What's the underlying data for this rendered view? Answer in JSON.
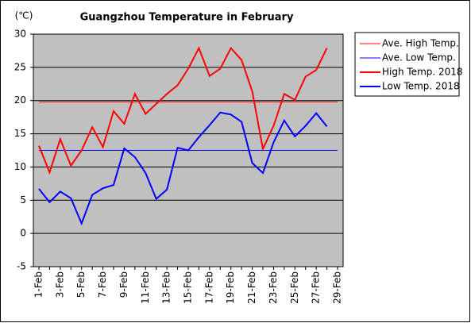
{
  "chart_data": {
    "type": "line",
    "title": "Guangzhou Temperature in February",
    "y_label": "(℃)",
    "categories": [
      "1-Feb",
      null,
      "3-Feb",
      null,
      "5-Feb",
      null,
      "7-Feb",
      null,
      "9-Feb",
      null,
      "11-Feb",
      null,
      "13-Feb",
      null,
      "15-Feb",
      null,
      "17-Feb",
      null,
      "19-Feb",
      null,
      "21-Feb",
      null,
      "23-Feb",
      null,
      "25-Feb",
      null,
      "27-Feb",
      null,
      "29-Feb"
    ],
    "series": [
      {
        "name": "Ave. High Temp.",
        "color": "#ff0000",
        "width": 1,
        "values": [
          19.8,
          19.8,
          19.8,
          19.8,
          19.8,
          19.8,
          19.8,
          19.8,
          19.8,
          19.8,
          19.8,
          19.8,
          19.8,
          19.8,
          19.8,
          19.8,
          19.8,
          19.8,
          19.8,
          19.8,
          19.8,
          19.8,
          19.8,
          19.8,
          19.8,
          19.8,
          19.8,
          19.8,
          19.8
        ]
      },
      {
        "name": "Ave. Low Temp.",
        "color": "#0000ff",
        "width": 1,
        "values": [
          12.5,
          12.5,
          12.5,
          12.5,
          12.5,
          12.5,
          12.5,
          12.5,
          12.5,
          12.5,
          12.5,
          12.5,
          12.5,
          12.5,
          12.5,
          12.5,
          12.5,
          12.5,
          12.5,
          12.5,
          12.5,
          12.5,
          12.5,
          12.5,
          12.5,
          12.5,
          12.5,
          12.5,
          12.5
        ]
      },
      {
        "name": "High Temp. 2018",
        "color": "#ff0000",
        "width": 2,
        "values": [
          13.2,
          9.2,
          14.2,
          10.2,
          12.5,
          16,
          13,
          18.4,
          16.5,
          21,
          18,
          19.5,
          21,
          22.3,
          24.8,
          27.9,
          23.7,
          24.8,
          27.9,
          26.1,
          21.4,
          12.7,
          16.2,
          21,
          20.1,
          23.6,
          24.6,
          27.9,
          null
        ]
      },
      {
        "name": "Low Temp. 2018",
        "color": "#0000ff",
        "width": 2,
        "values": [
          6.7,
          4.7,
          6.3,
          5.3,
          1.5,
          5.8,
          6.8,
          7.3,
          12.8,
          11.5,
          9.1,
          5.2,
          6.6,
          12.9,
          12.5,
          14.5,
          16.3,
          18.2,
          17.9,
          16.8,
          10.6,
          9.1,
          13.7,
          17,
          14.6,
          16.2,
          18.1,
          16.1,
          null
        ]
      }
    ],
    "ylim": [
      -5,
      30
    ],
    "yticks": [
      -5,
      0,
      5,
      10,
      15,
      20,
      25,
      30
    ],
    "grid": true,
    "legend": "right",
    "plot_background": "#c0c0c0"
  }
}
